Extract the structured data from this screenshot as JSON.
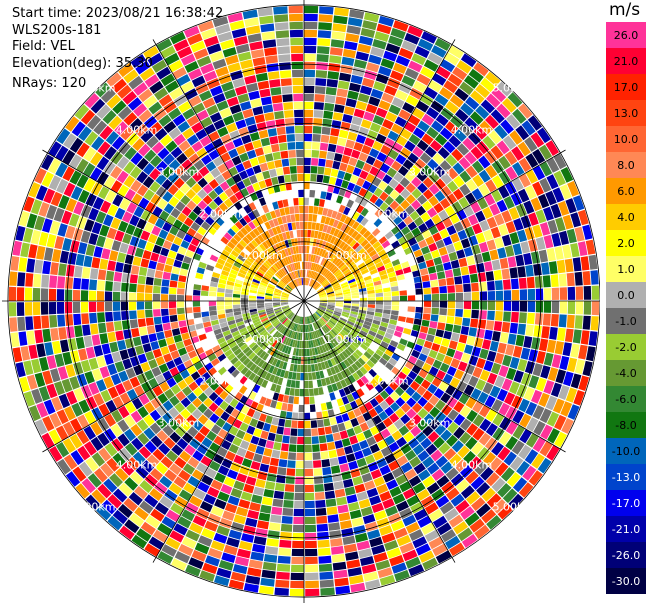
{
  "header": {
    "start_time": "Start time: 2023/08/21 16:38:42",
    "instrument": "WLS200s-181",
    "field": "Field: VEL",
    "elevation": "Elevation(deg): 35.30",
    "nrays": "NRays: 120"
  },
  "chart_data": {
    "type": "heatmap",
    "projection": "ppi-polar",
    "field": "VEL",
    "units": "m/s",
    "nrays": 120,
    "range_rings_km": [
      1,
      2,
      3,
      4,
      5
    ],
    "ring_labels": [
      "1.00km",
      "2.00km",
      "3.00km",
      "4.00km",
      "5.00km"
    ],
    "coherent_range_km": 1.6,
    "colorbar": {
      "label": "m/s",
      "ticks": [
        "26.0",
        "21.0",
        "17.0",
        "13.0",
        "10.0",
        "8.0",
        "6.0",
        "4.0",
        "2.0",
        "1.0",
        "0.0",
        "-1.0",
        "-2.0",
        "-4.0",
        "-6.0",
        "-8.0",
        "-10.0",
        "-13.0",
        "-17.0",
        "-21.0",
        "-26.0",
        "-30.0"
      ],
      "colors": [
        "#ff3399",
        "#ff0033",
        "#ff2200",
        "#ff4411",
        "#ff6633",
        "#ff8855",
        "#ff9900",
        "#ffcc00",
        "#ffff00",
        "#ffff66",
        "#b0b0b0",
        "#707070",
        "#99cc33",
        "#669933",
        "#338833",
        "#117711",
        "#0066bb",
        "#0044cc",
        "#0000ee",
        "#0000aa",
        "#000077",
        "#000044"
      ],
      "range": [
        -30,
        30
      ]
    }
  }
}
